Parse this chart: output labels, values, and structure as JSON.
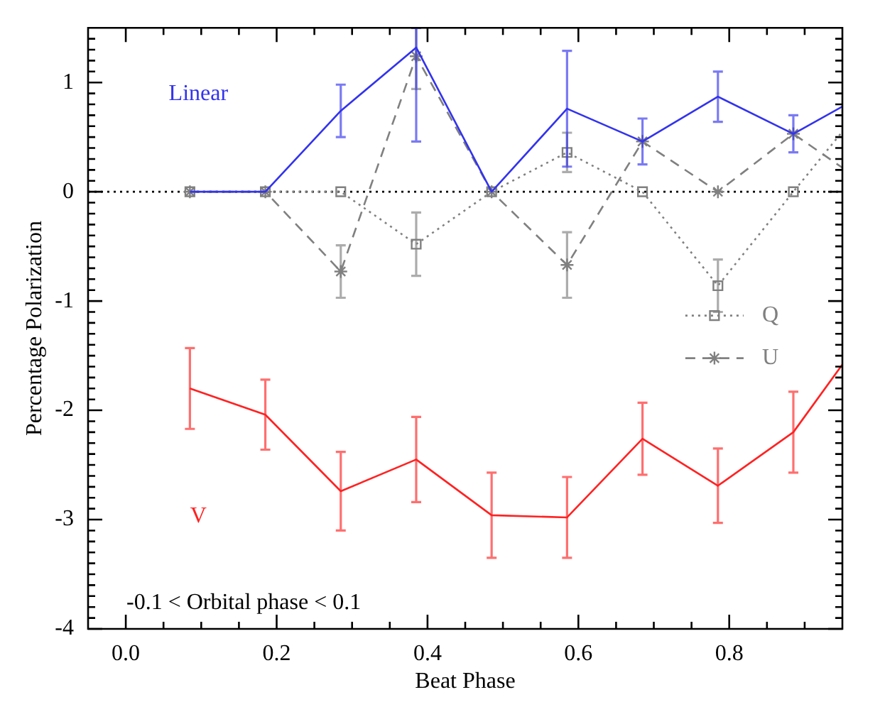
{
  "chart_data": {
    "type": "line",
    "xlabel": "Beat Phase",
    "ylabel": "Percentage Polarization",
    "x": [
      0.085,
      0.185,
      0.285,
      0.385,
      0.485,
      0.585,
      0.685,
      0.785,
      0.885,
      0.95
    ],
    "xlim": [
      -0.05,
      0.95
    ],
    "xticks": [
      {
        "value": 0,
        "label": "0.0"
      },
      {
        "value": 0.05,
        "label": null
      },
      {
        "value": 0.1,
        "label": null
      },
      {
        "value": 0.15,
        "label": null
      },
      0.2,
      {
        "value": 0.25,
        "label": null
      },
      {
        "value": 0.3,
        "label": null
      },
      {
        "value": 0.35,
        "label": null
      },
      0.4,
      {
        "value": 0.45,
        "label": null
      },
      {
        "value": 0.5,
        "label": null
      },
      {
        "value": 0.55,
        "label": null
      },
      0.6,
      {
        "value": 0.65,
        "label": null
      },
      {
        "value": 0.7,
        "label": null
      },
      {
        "value": 0.75,
        "label": null
      },
      0.8,
      {
        "value": 0.85,
        "label": null
      },
      {
        "value": 0.9,
        "label": null
      }
    ],
    "ylim": [
      -4,
      1.5
    ],
    "yticks": [
      -4,
      {
        "value": -3.9,
        "label": null
      },
      {
        "value": -3.8,
        "label": null
      },
      {
        "value": -3.7,
        "label": null
      },
      {
        "value": -3.6,
        "label": null
      },
      {
        "value": -3.5,
        "label": null
      },
      {
        "value": -3.4,
        "label": null
      },
      {
        "value": -3.3,
        "label": null
      },
      {
        "value": -3.2,
        "label": null
      },
      {
        "value": -3.1,
        "label": null
      },
      -3,
      {
        "value": -2.9,
        "label": null
      },
      {
        "value": -2.8,
        "label": null
      },
      {
        "value": -2.7,
        "label": null
      },
      {
        "value": -2.6,
        "label": null
      },
      {
        "value": -2.5,
        "label": null
      },
      {
        "value": -2.4,
        "label": null
      },
      {
        "value": -2.3,
        "label": null
      },
      {
        "value": -2.2,
        "label": null
      },
      {
        "value": -2.1,
        "label": null
      },
      -2,
      {
        "value": -1.9,
        "label": null
      },
      {
        "value": -1.8,
        "label": null
      },
      {
        "value": -1.7,
        "label": null
      },
      {
        "value": -1.6,
        "label": null
      },
      {
        "value": -1.5,
        "label": null
      },
      {
        "value": -1.4,
        "label": null
      },
      {
        "value": -1.3,
        "label": null
      },
      {
        "value": -1.2,
        "label": null
      },
      {
        "value": -1.1,
        "label": null
      },
      -1,
      {
        "value": -0.9,
        "label": null
      },
      {
        "value": -0.8,
        "label": null
      },
      {
        "value": -0.7,
        "label": null
      },
      {
        "value": -0.6,
        "label": null
      },
      {
        "value": -0.5,
        "label": null
      },
      {
        "value": -0.4,
        "label": null
      },
      {
        "value": -0.3,
        "label": null
      },
      {
        "value": -0.2,
        "label": null
      },
      {
        "value": -0.1,
        "label": null
      },
      0,
      {
        "value": 0.1,
        "label": null
      },
      {
        "value": 0.2,
        "label": null
      },
      {
        "value": 0.3,
        "label": null
      },
      {
        "value": 0.4,
        "label": null
      },
      {
        "value": 0.5,
        "label": null
      },
      {
        "value": 0.6,
        "label": null
      },
      {
        "value": 0.7,
        "label": null
      },
      {
        "value": 0.8,
        "label": null
      },
      {
        "value": 0.9,
        "label": null
      },
      1,
      {
        "value": 1.1,
        "label": null
      },
      {
        "value": 1.2,
        "label": null
      },
      {
        "value": 1.3,
        "label": null
      },
      {
        "value": 1.4,
        "label": null
      }
    ],
    "grid": false,
    "legend": "right",
    "series": [
      {
        "name": "Linear",
        "color": "#3333ee",
        "line_style": "solid",
        "values": [
          0,
          0,
          0.74,
          1.32,
          0,
          0.76,
          0.46,
          0.87,
          0.53,
          0.78
        ],
        "errors": [
          null,
          null,
          0.24,
          [
            0.46,
            1.5
          ],
          null,
          0.53,
          0.21,
          0.23,
          0.17,
          null
        ]
      },
      {
        "name": "Q",
        "color": "#808080",
        "line_style": "dotted",
        "marker": "square",
        "values": [
          0,
          0,
          0,
          -0.48,
          0,
          0.36,
          0,
          -0.86,
          0,
          0.55
        ],
        "errors": [
          null,
          null,
          null,
          0.29,
          null,
          0.18,
          null,
          0.24,
          null,
          null
        ]
      },
      {
        "name": "U",
        "color": "#808080",
        "line_style": "dashed",
        "marker": "cross",
        "values": [
          0,
          0,
          -0.73,
          1.24,
          0,
          -0.67,
          0.46,
          0,
          0.53,
          0.22
        ],
        "errors": [
          null,
          null,
          0.24,
          [
            0.94,
            1.5
          ],
          null,
          0.3,
          null,
          null,
          null,
          null
        ]
      },
      {
        "name": "V",
        "color": "#ff2222",
        "line_style": "solid",
        "values": [
          -1.8,
          -2.04,
          -2.74,
          -2.45,
          -2.96,
          -2.98,
          -2.26,
          -2.69,
          -2.2,
          -1.58
        ],
        "errors": [
          0.37,
          0.32,
          0.36,
          0.39,
          0.39,
          0.37,
          0.33,
          0.34,
          0.37,
          null
        ]
      }
    ],
    "ref_lines": [
      {
        "axis": "y",
        "value": 0,
        "color": "#000000",
        "line_style": "dotted"
      }
    ],
    "annotations": [
      "-0.1 < Orbital phase < 0.1"
    ]
  }
}
